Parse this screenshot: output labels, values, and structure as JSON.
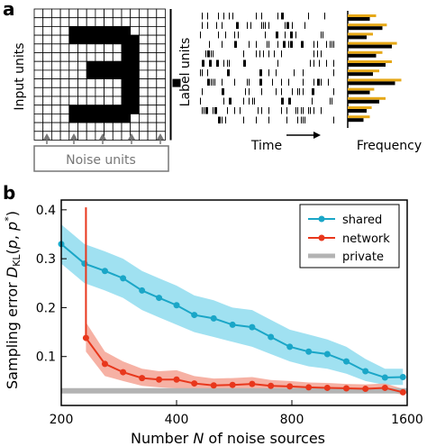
{
  "panel_a": {
    "panel_label": "a",
    "input_units_label": "Input units",
    "noise_units_label": "Noise units",
    "label_units_label": "Label units",
    "time_label": "Time",
    "frequency_label": "Frequency",
    "colors": {
      "bar_dark": "#000000",
      "bar_accent": "#e6a817",
      "grid": "#000000",
      "arrow": "#777777"
    },
    "digit_pixels": [
      [
        0,
        0,
        0,
        0,
        0,
        0,
        0,
        0,
        0,
        0,
        0,
        0,
        0,
        0,
        0
      ],
      [
        0,
        0,
        0,
        0,
        0,
        0,
        0,
        0,
        0,
        0,
        0,
        0,
        0,
        0,
        0
      ],
      [
        0,
        0,
        0,
        0,
        1,
        1,
        1,
        1,
        1,
        1,
        1,
        0,
        0,
        0,
        0
      ],
      [
        0,
        0,
        0,
        0,
        1,
        1,
        1,
        1,
        1,
        1,
        1,
        1,
        0,
        0,
        0
      ],
      [
        0,
        0,
        0,
        0,
        0,
        0,
        0,
        0,
        0,
        0,
        1,
        1,
        0,
        0,
        0
      ],
      [
        0,
        0,
        0,
        0,
        0,
        0,
        0,
        0,
        0,
        0,
        1,
        1,
        0,
        0,
        0
      ],
      [
        0,
        0,
        0,
        0,
        0,
        0,
        1,
        1,
        1,
        1,
        1,
        1,
        0,
        0,
        0
      ],
      [
        0,
        0,
        0,
        0,
        0,
        0,
        1,
        1,
        1,
        1,
        1,
        1,
        0,
        0,
        0
      ],
      [
        0,
        0,
        0,
        0,
        0,
        0,
        0,
        0,
        0,
        0,
        1,
        1,
        0,
        0,
        0
      ],
      [
        0,
        0,
        0,
        0,
        0,
        0,
        0,
        0,
        0,
        0,
        1,
        1,
        0,
        0,
        0
      ],
      [
        0,
        0,
        0,
        0,
        0,
        0,
        0,
        0,
        0,
        0,
        1,
        1,
        0,
        0,
        0
      ],
      [
        0,
        0,
        0,
        0,
        1,
        1,
        1,
        1,
        1,
        1,
        1,
        1,
        0,
        0,
        0
      ],
      [
        0,
        0,
        0,
        0,
        1,
        1,
        1,
        1,
        1,
        1,
        1,
        0,
        0,
        0,
        0
      ],
      [
        0,
        0,
        0,
        0,
        0,
        0,
        0,
        0,
        0,
        0,
        0,
        0,
        0,
        0,
        0
      ],
      [
        0,
        0,
        0,
        0,
        0,
        0,
        0,
        0,
        0,
        0,
        0,
        0,
        0,
        0,
        0
      ]
    ],
    "label_frequencies": [
      {
        "dark": 0.35,
        "accent": 0.45
      },
      {
        "dark": 0.55,
        "accent": 0.62
      },
      {
        "dark": 0.3,
        "accent": 0.4
      },
      {
        "dark": 0.7,
        "accent": 0.78
      },
      {
        "dark": 0.45,
        "accent": 0.55
      },
      {
        "dark": 0.6,
        "accent": 0.7
      },
      {
        "dark": 0.4,
        "accent": 0.5
      },
      {
        "dark": 0.75,
        "accent": 0.85
      },
      {
        "dark": 0.35,
        "accent": 0.42
      },
      {
        "dark": 0.5,
        "accent": 0.6
      },
      {
        "dark": 0.3,
        "accent": 0.38
      },
      {
        "dark": 0.25,
        "accent": 0.35
      }
    ]
  },
  "chart_data": {
    "type": "line",
    "panel_label": "b",
    "xlabel": "Number N of noise sources",
    "ylabel": "Sampling error D_KL(p, p*)",
    "xscale": "log",
    "xlim": [
      200,
      1600
    ],
    "ylim": [
      0.0,
      0.42
    ],
    "xticks": [
      200,
      400,
      800,
      1600
    ],
    "yticks": [
      0.1,
      0.2,
      0.3,
      0.4
    ],
    "grid": false,
    "legend_position": "top-right",
    "series": [
      {
        "name": "shared",
        "color": "#1aa6c7",
        "band_color": "#8fdcef",
        "x": [
          200,
          230,
          260,
          290,
          325,
          360,
          400,
          445,
          500,
          560,
          630,
          705,
          790,
          885,
          990,
          1110,
          1245,
          1400,
          1560
        ],
        "y": [
          0.33,
          0.29,
          0.275,
          0.26,
          0.235,
          0.22,
          0.205,
          0.185,
          0.178,
          0.165,
          0.16,
          0.14,
          0.12,
          0.11,
          0.105,
          0.09,
          0.07,
          0.057,
          0.058
        ],
        "band": [
          [
            0.29,
            0.37
          ],
          [
            0.25,
            0.33
          ],
          [
            0.235,
            0.315
          ],
          [
            0.22,
            0.3
          ],
          [
            0.195,
            0.275
          ],
          [
            0.18,
            0.26
          ],
          [
            0.165,
            0.245
          ],
          [
            0.15,
            0.225
          ],
          [
            0.14,
            0.215
          ],
          [
            0.13,
            0.2
          ],
          [
            0.12,
            0.195
          ],
          [
            0.105,
            0.175
          ],
          [
            0.09,
            0.155
          ],
          [
            0.08,
            0.145
          ],
          [
            0.075,
            0.135
          ],
          [
            0.065,
            0.12
          ],
          [
            0.05,
            0.095
          ],
          [
            0.042,
            0.075
          ],
          [
            0.042,
            0.075
          ]
        ]
      },
      {
        "name": "network",
        "color": "#e8371c",
        "band_color": "#f4a394",
        "spike": {
          "x": 232,
          "y": 0.405
        },
        "x": [
          232,
          260,
          290,
          325,
          360,
          400,
          445,
          500,
          560,
          630,
          705,
          790,
          885,
          990,
          1110,
          1245,
          1400,
          1560
        ],
        "y": [
          0.138,
          0.085,
          0.068,
          0.056,
          0.053,
          0.053,
          0.045,
          0.041,
          0.042,
          0.044,
          0.04,
          0.039,
          0.037,
          0.036,
          0.035,
          0.034,
          0.036,
          0.027
        ],
        "band": [
          [
            0.11,
            0.17
          ],
          [
            0.06,
            0.11
          ],
          [
            0.05,
            0.09
          ],
          [
            0.04,
            0.075
          ],
          [
            0.037,
            0.07
          ],
          [
            0.035,
            0.072
          ],
          [
            0.032,
            0.06
          ],
          [
            0.03,
            0.055
          ],
          [
            0.03,
            0.056
          ],
          [
            0.032,
            0.058
          ],
          [
            0.03,
            0.052
          ],
          [
            0.03,
            0.05
          ],
          [
            0.029,
            0.047
          ],
          [
            0.028,
            0.046
          ],
          [
            0.028,
            0.044
          ],
          [
            0.027,
            0.043
          ],
          [
            0.028,
            0.045
          ],
          [
            0.022,
            0.034
          ]
        ]
      },
      {
        "name": "private",
        "color": "#b3b3b3",
        "constant": 0.03
      }
    ]
  }
}
